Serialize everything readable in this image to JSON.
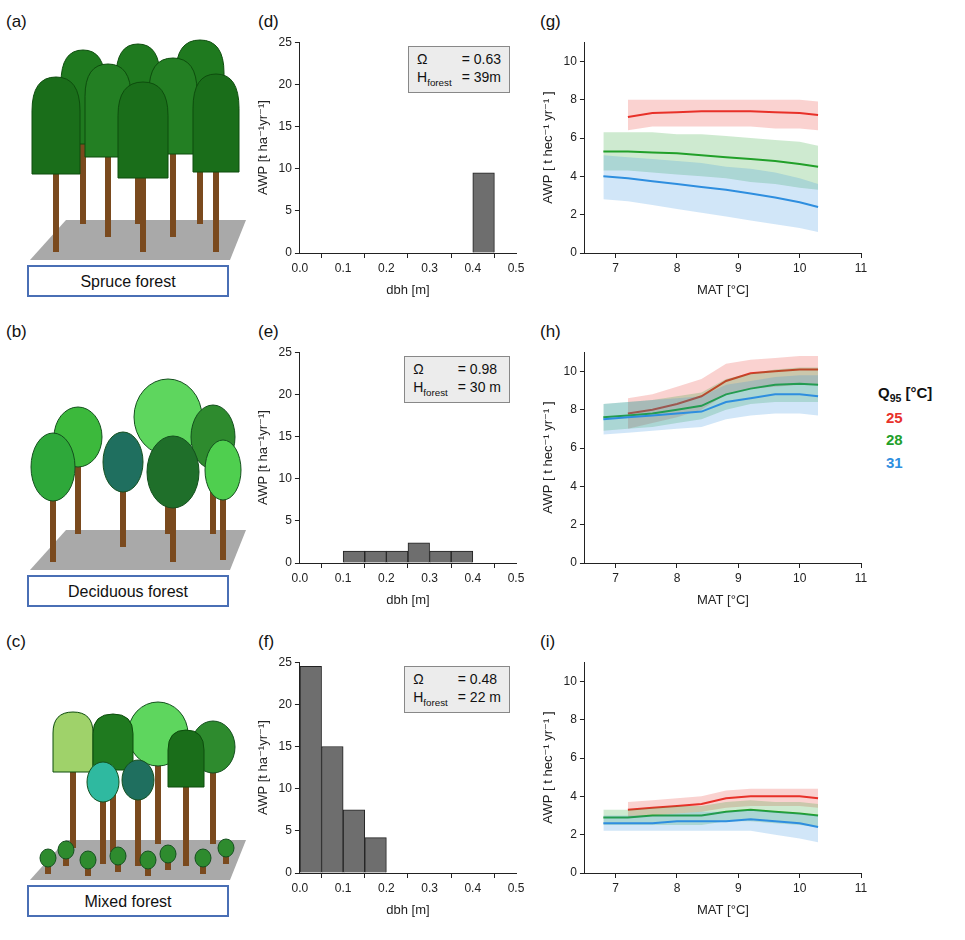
{
  "illustrations": [
    {
      "letter": "(a)",
      "caption": "Spruce forest"
    },
    {
      "letter": "(b)",
      "caption": "Deciduous forest"
    },
    {
      "letter": "(c)",
      "caption": "Mixed forest"
    }
  ],
  "chart_data": [
    {
      "letter": "(d)",
      "type": "histogram",
      "x_label": "dbh [m]",
      "y_label": "AWP [t ha⁻¹yr⁻¹]",
      "bins": [
        0,
        0.05,
        0.1,
        0.15,
        0.2,
        0.25,
        0.3,
        0.35,
        0.4,
        0.45,
        0.5
      ],
      "counts": [
        0,
        0,
        0,
        0,
        0,
        0,
        0,
        0,
        9.5,
        0
      ],
      "color": "#6e6e6e",
      "xlim": [
        0,
        0.5
      ],
      "xticks": [
        {
          "value": 0,
          "label": "0.0"
        },
        0.1,
        0.2,
        0.3,
        0.4,
        0.5
      ],
      "ylim": [
        0,
        25
      ],
      "yticks": [
        0,
        5,
        10,
        15,
        20,
        25
      ],
      "annotation": [
        {
          "symbol": "Ω",
          "text": "= 0.63"
        },
        {
          "symbol": "H",
          "subscript": "forest",
          "text": "= 39m"
        }
      ]
    },
    {
      "letter": "(e)",
      "type": "histogram",
      "x_label": "dbh [m]",
      "y_label": "AWP [t ha⁻¹yr⁻¹]",
      "bins": [
        0,
        0.05,
        0.1,
        0.15,
        0.2,
        0.25,
        0.3,
        0.35,
        0.4,
        0.45,
        0.5
      ],
      "counts": [
        0,
        0,
        1.4,
        1.4,
        1.4,
        2.4,
        1.4,
        1.4,
        0,
        0
      ],
      "color": "#6e6e6e",
      "xlim": [
        0,
        0.5
      ],
      "xticks": [
        {
          "value": 0,
          "label": "0.0"
        },
        0.1,
        0.2,
        0.3,
        0.4,
        0.5
      ],
      "ylim": [
        0,
        25
      ],
      "yticks": [
        0,
        5,
        10,
        15,
        20,
        25
      ],
      "annotation": [
        {
          "symbol": "Ω",
          "text": "= 0.98"
        },
        {
          "symbol": "H",
          "subscript": "forest",
          "text": "= 30 m"
        }
      ]
    },
    {
      "letter": "(f)",
      "type": "histogram",
      "x_label": "dbh [m]",
      "y_label": "AWP [t ha⁻¹yr⁻¹]",
      "bins": [
        0,
        0.05,
        0.1,
        0.15,
        0.2,
        0.25,
        0.3,
        0.35,
        0.4,
        0.45,
        0.5
      ],
      "counts": [
        24.5,
        15,
        7.5,
        4.2,
        0,
        0,
        0,
        0,
        0,
        0
      ],
      "color": "#6e6e6e",
      "xlim": [
        0,
        0.5
      ],
      "xticks": [
        {
          "value": 0,
          "label": "0.0"
        },
        0.1,
        0.2,
        0.3,
        0.4,
        0.5
      ],
      "ylim": [
        0,
        25
      ],
      "yticks": [
        0,
        5,
        10,
        15,
        20,
        25
      ],
      "annotation": [
        {
          "symbol": "Ω",
          "text": "= 0.48"
        },
        {
          "symbol": "H",
          "subscript": "forest",
          "text": "= 22 m"
        }
      ]
    },
    {
      "letter": "(g)",
      "type": "line",
      "x_label": "MAT [°C]",
      "y_label": "AWP [ t hec⁻¹ yr⁻¹ ]",
      "xlim": [
        6.5,
        11
      ],
      "xticks": [
        7,
        8,
        9,
        10,
        11
      ],
      "ylim": [
        0,
        11
      ],
      "yticks": [
        0,
        2,
        4,
        6,
        8,
        10
      ],
      "x": [
        6.8,
        7.2,
        7.6,
        8.0,
        8.4,
        8.8,
        9.2,
        9.6,
        10.0,
        10.3
      ],
      "series": [
        {
          "color": "#e8312a",
          "values": [
            null,
            7.1,
            7.3,
            7.35,
            7.4,
            7.4,
            7.4,
            7.35,
            7.3,
            7.2
          ],
          "lower": [
            null,
            6.4,
            6.6,
            6.6,
            6.6,
            6.6,
            6.6,
            6.5,
            6.5,
            6.4
          ],
          "upper": [
            null,
            8.0,
            8.0,
            8.0,
            8.0,
            8.0,
            8.0,
            8.0,
            8.0,
            7.9
          ]
        },
        {
          "color": "#22a02a",
          "values": [
            5.3,
            5.3,
            5.25,
            5.2,
            5.1,
            5.0,
            4.9,
            4.8,
            4.65,
            4.5
          ],
          "lower": [
            4.3,
            4.3,
            4.2,
            4.1,
            4.0,
            3.9,
            3.7,
            3.6,
            3.4,
            3.3
          ],
          "upper": [
            6.3,
            6.3,
            6.3,
            6.2,
            6.2,
            6.1,
            6.0,
            5.9,
            5.8,
            5.6
          ]
        },
        {
          "color": "#2f8fdf",
          "values": [
            4.0,
            3.9,
            3.75,
            3.6,
            3.45,
            3.3,
            3.1,
            2.9,
            2.65,
            2.4
          ],
          "lower": [
            2.8,
            2.7,
            2.5,
            2.3,
            2.1,
            1.9,
            1.7,
            1.5,
            1.3,
            1.1
          ],
          "upper": [
            5.1,
            5.0,
            4.9,
            4.8,
            4.7,
            4.5,
            4.4,
            4.2,
            3.9,
            3.6
          ]
        }
      ]
    },
    {
      "letter": "(h)",
      "type": "line",
      "x_label": "MAT [°C]",
      "y_label": "AWP [ t hec⁻¹ yr⁻¹ ]",
      "xlim": [
        6.5,
        11
      ],
      "xticks": [
        7,
        8,
        9,
        10,
        11
      ],
      "ylim": [
        0,
        11
      ],
      "yticks": [
        0,
        2,
        4,
        6,
        8,
        10
      ],
      "legend": "right",
      "legend_title": {
        "symbol": "Q",
        "subscript": "95",
        "text": "[°C]"
      },
      "x": [
        6.8,
        7.2,
        7.6,
        8.0,
        8.4,
        8.8,
        9.2,
        9.6,
        10.0,
        10.3
      ],
      "series": [
        {
          "name": "25",
          "color": "#e8312a",
          "values": [
            null,
            7.8,
            8.0,
            8.3,
            8.7,
            9.5,
            9.9,
            10.0,
            10.1,
            10.1
          ],
          "lower": [
            null,
            7.0,
            7.3,
            7.6,
            8.0,
            8.8,
            9.1,
            9.2,
            9.3,
            9.3
          ],
          "upper": [
            null,
            8.6,
            8.8,
            9.2,
            9.6,
            10.4,
            10.6,
            10.7,
            10.8,
            10.8
          ]
        },
        {
          "name": "28",
          "color": "#22a02a",
          "values": [
            7.6,
            7.7,
            7.8,
            8.0,
            8.2,
            8.8,
            9.1,
            9.3,
            9.35,
            9.3
          ],
          "lower": [
            6.9,
            7.0,
            7.1,
            7.3,
            7.5,
            8.0,
            8.3,
            8.4,
            8.4,
            8.4
          ],
          "upper": [
            8.3,
            8.4,
            8.5,
            8.7,
            8.9,
            9.6,
            9.9,
            10.1,
            10.2,
            10.2
          ]
        },
        {
          "name": "31",
          "color": "#2f8fdf",
          "values": [
            7.5,
            7.6,
            7.7,
            7.8,
            7.9,
            8.4,
            8.6,
            8.8,
            8.8,
            8.7
          ],
          "lower": [
            6.7,
            6.8,
            6.9,
            7.0,
            7.1,
            7.5,
            7.7,
            7.8,
            7.8,
            7.7
          ],
          "upper": [
            8.3,
            8.4,
            8.5,
            8.6,
            8.7,
            9.3,
            9.5,
            9.7,
            9.8,
            9.8
          ]
        }
      ]
    },
    {
      "letter": "(i)",
      "type": "line",
      "x_label": "MAT [°C]",
      "y_label": "AWP [ t hec⁻¹ yr⁻¹ ]",
      "xlim": [
        6.5,
        11
      ],
      "xticks": [
        7,
        8,
        9,
        10,
        11
      ],
      "ylim": [
        0,
        11
      ],
      "yticks": [
        0,
        2,
        4,
        6,
        8,
        10
      ],
      "x": [
        6.8,
        7.2,
        7.6,
        8.0,
        8.4,
        8.8,
        9.2,
        9.6,
        10.0,
        10.3
      ],
      "series": [
        {
          "color": "#e8312a",
          "values": [
            null,
            3.3,
            3.4,
            3.5,
            3.6,
            3.9,
            4.0,
            4.0,
            4.0,
            3.9
          ],
          "lower": [
            null,
            2.9,
            3.0,
            3.1,
            3.2,
            3.4,
            3.5,
            3.5,
            3.5,
            3.4
          ],
          "upper": [
            null,
            3.7,
            3.8,
            3.9,
            4.0,
            4.3,
            4.4,
            4.4,
            4.4,
            4.4
          ]
        },
        {
          "color": "#22a02a",
          "values": [
            2.9,
            2.9,
            3.0,
            3.0,
            3.0,
            3.2,
            3.3,
            3.2,
            3.1,
            3.0
          ],
          "lower": [
            2.5,
            2.5,
            2.5,
            2.5,
            2.5,
            2.7,
            2.7,
            2.6,
            2.5,
            2.4
          ],
          "upper": [
            3.3,
            3.3,
            3.4,
            3.5,
            3.5,
            3.7,
            3.8,
            3.7,
            3.7,
            3.6
          ]
        },
        {
          "color": "#2f8fdf",
          "values": [
            2.6,
            2.6,
            2.6,
            2.7,
            2.7,
            2.7,
            2.8,
            2.7,
            2.6,
            2.4
          ],
          "lower": [
            2.2,
            2.2,
            2.2,
            2.2,
            2.2,
            2.2,
            2.2,
            2.0,
            1.8,
            1.6
          ],
          "upper": [
            3.0,
            3.0,
            3.0,
            3.1,
            3.2,
            3.2,
            3.3,
            3.2,
            3.1,
            3.0
          ]
        }
      ]
    }
  ]
}
